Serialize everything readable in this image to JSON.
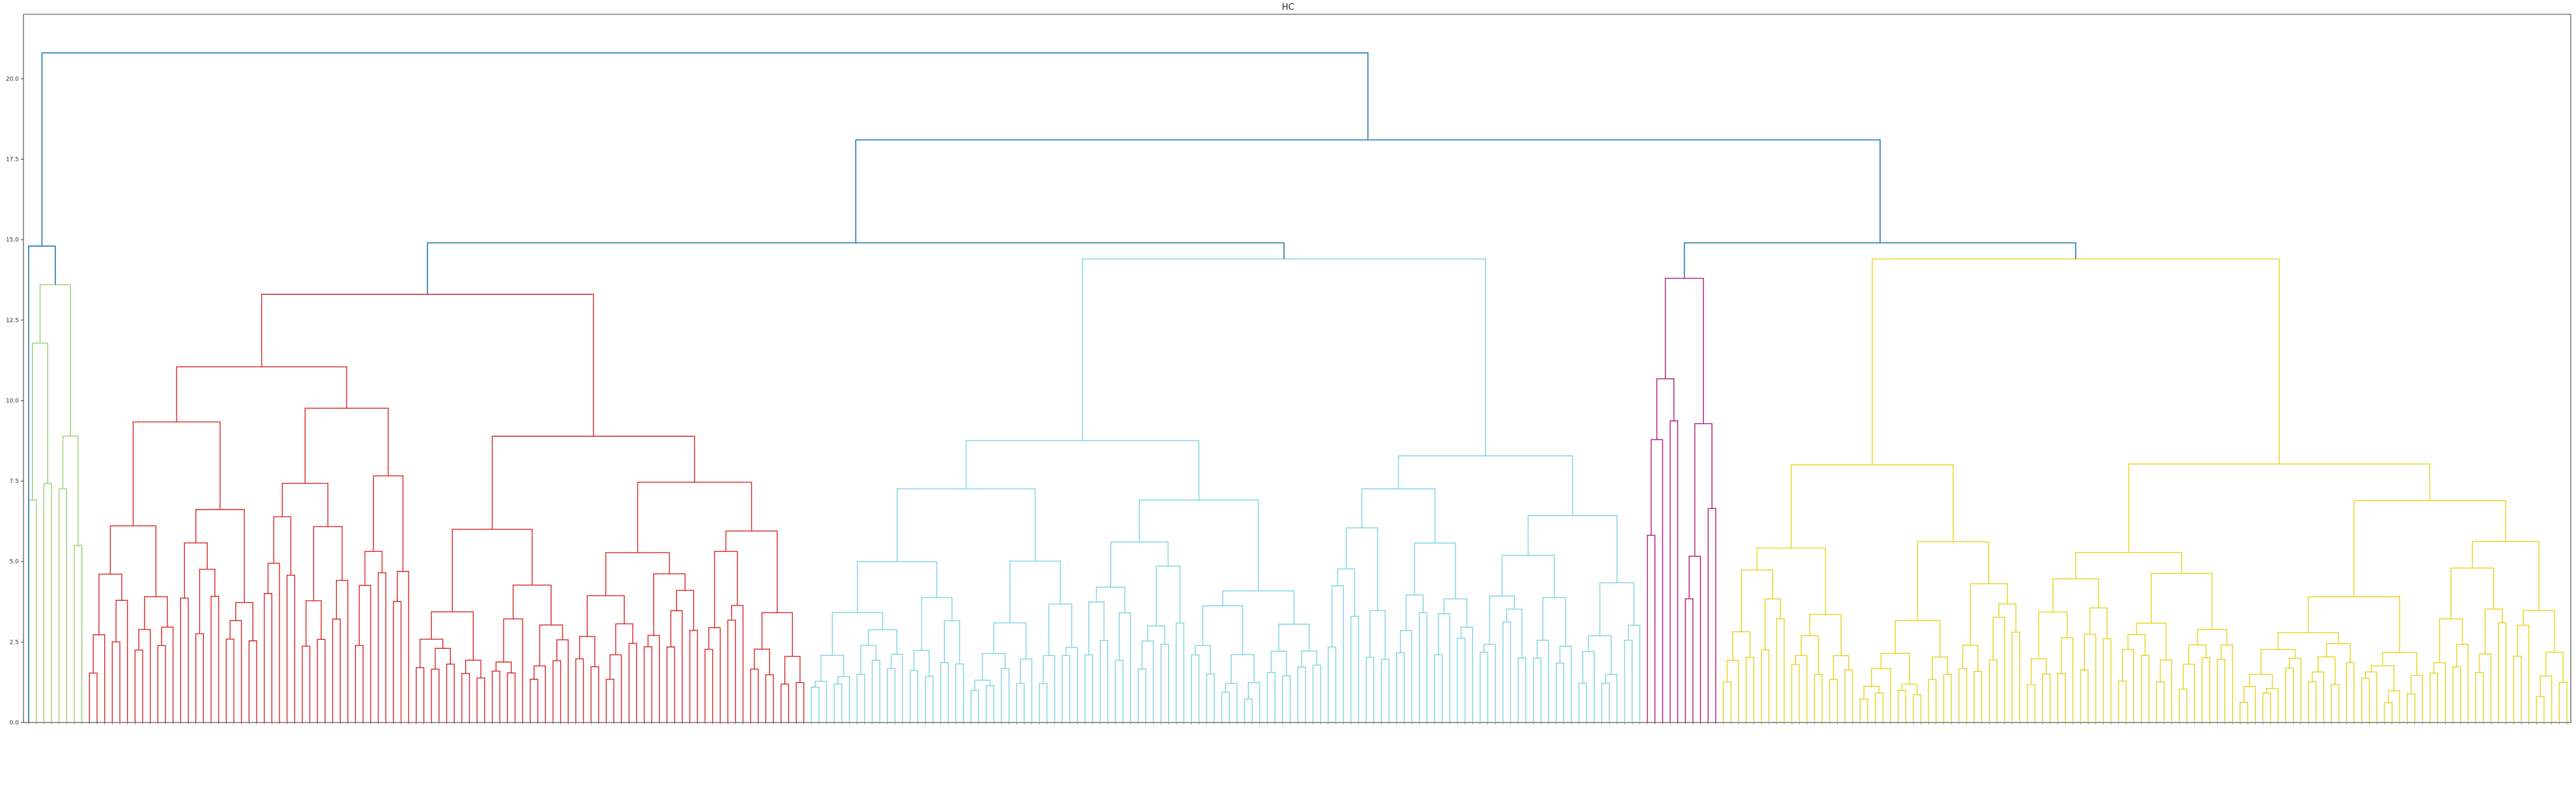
{
  "chart_data": {
    "type": "dendrogram",
    "title": "HC",
    "xlabel": "",
    "ylabel": "",
    "ylim": [
      0,
      22
    ],
    "yticks": [
      0.0,
      2.5,
      5.0,
      7.5,
      10.0,
      12.5,
      15.0,
      17.5,
      20.0
    ],
    "ytick_labels": [
      "0.0",
      "2.5",
      "5.0",
      "7.5",
      "10.0",
      "12.5",
      "15.0",
      "17.5",
      "20.0"
    ],
    "grid": false,
    "link_colors": {
      "root": "#1f77b4",
      "c1": "#9acd6e",
      "c2": "#d62728",
      "c3": "#7fd3e0",
      "c4": "#b5177a",
      "c5": "#e8d21d"
    },
    "leaf_groups": [
      {
        "cluster": "c1",
        "count": 8
      },
      {
        "cluster": "c2",
        "count": 95
      },
      {
        "cluster": "c3",
        "count": 110
      },
      {
        "cluster": "c4",
        "count": 10
      },
      {
        "cluster": "c5",
        "count": 112
      }
    ],
    "merges": [
      {
        "cluster": "root",
        "height": 20.8,
        "between": [
          "left",
          "right"
        ]
      },
      {
        "cluster": "root",
        "height": 18.1,
        "between": [
          "middle",
          "right"
        ]
      },
      {
        "cluster": "root",
        "height": 16.4,
        "between": [
          "c4",
          "c5"
        ]
      },
      {
        "cluster": "root",
        "height": 14.9,
        "between": [
          "c2",
          "c3"
        ]
      },
      {
        "cluster": "root",
        "height": 14.9,
        "between": [
          "c4",
          "c5"
        ]
      },
      {
        "cluster": "root",
        "height": 14.8,
        "between": [
          "root-leaf",
          "c1"
        ]
      },
      {
        "cluster": "c1",
        "height": 13.6
      },
      {
        "cluster": "c2",
        "height": 13.3
      },
      {
        "cluster": "c2",
        "height": 12.9
      },
      {
        "cluster": "c3",
        "height": 14.4
      },
      {
        "cluster": "c3",
        "height": 12.6
      },
      {
        "cluster": "c4",
        "height": 13.8
      },
      {
        "cluster": "c5",
        "height": 14.4
      },
      {
        "cluster": "c5",
        "height": 13.4
      }
    ]
  }
}
